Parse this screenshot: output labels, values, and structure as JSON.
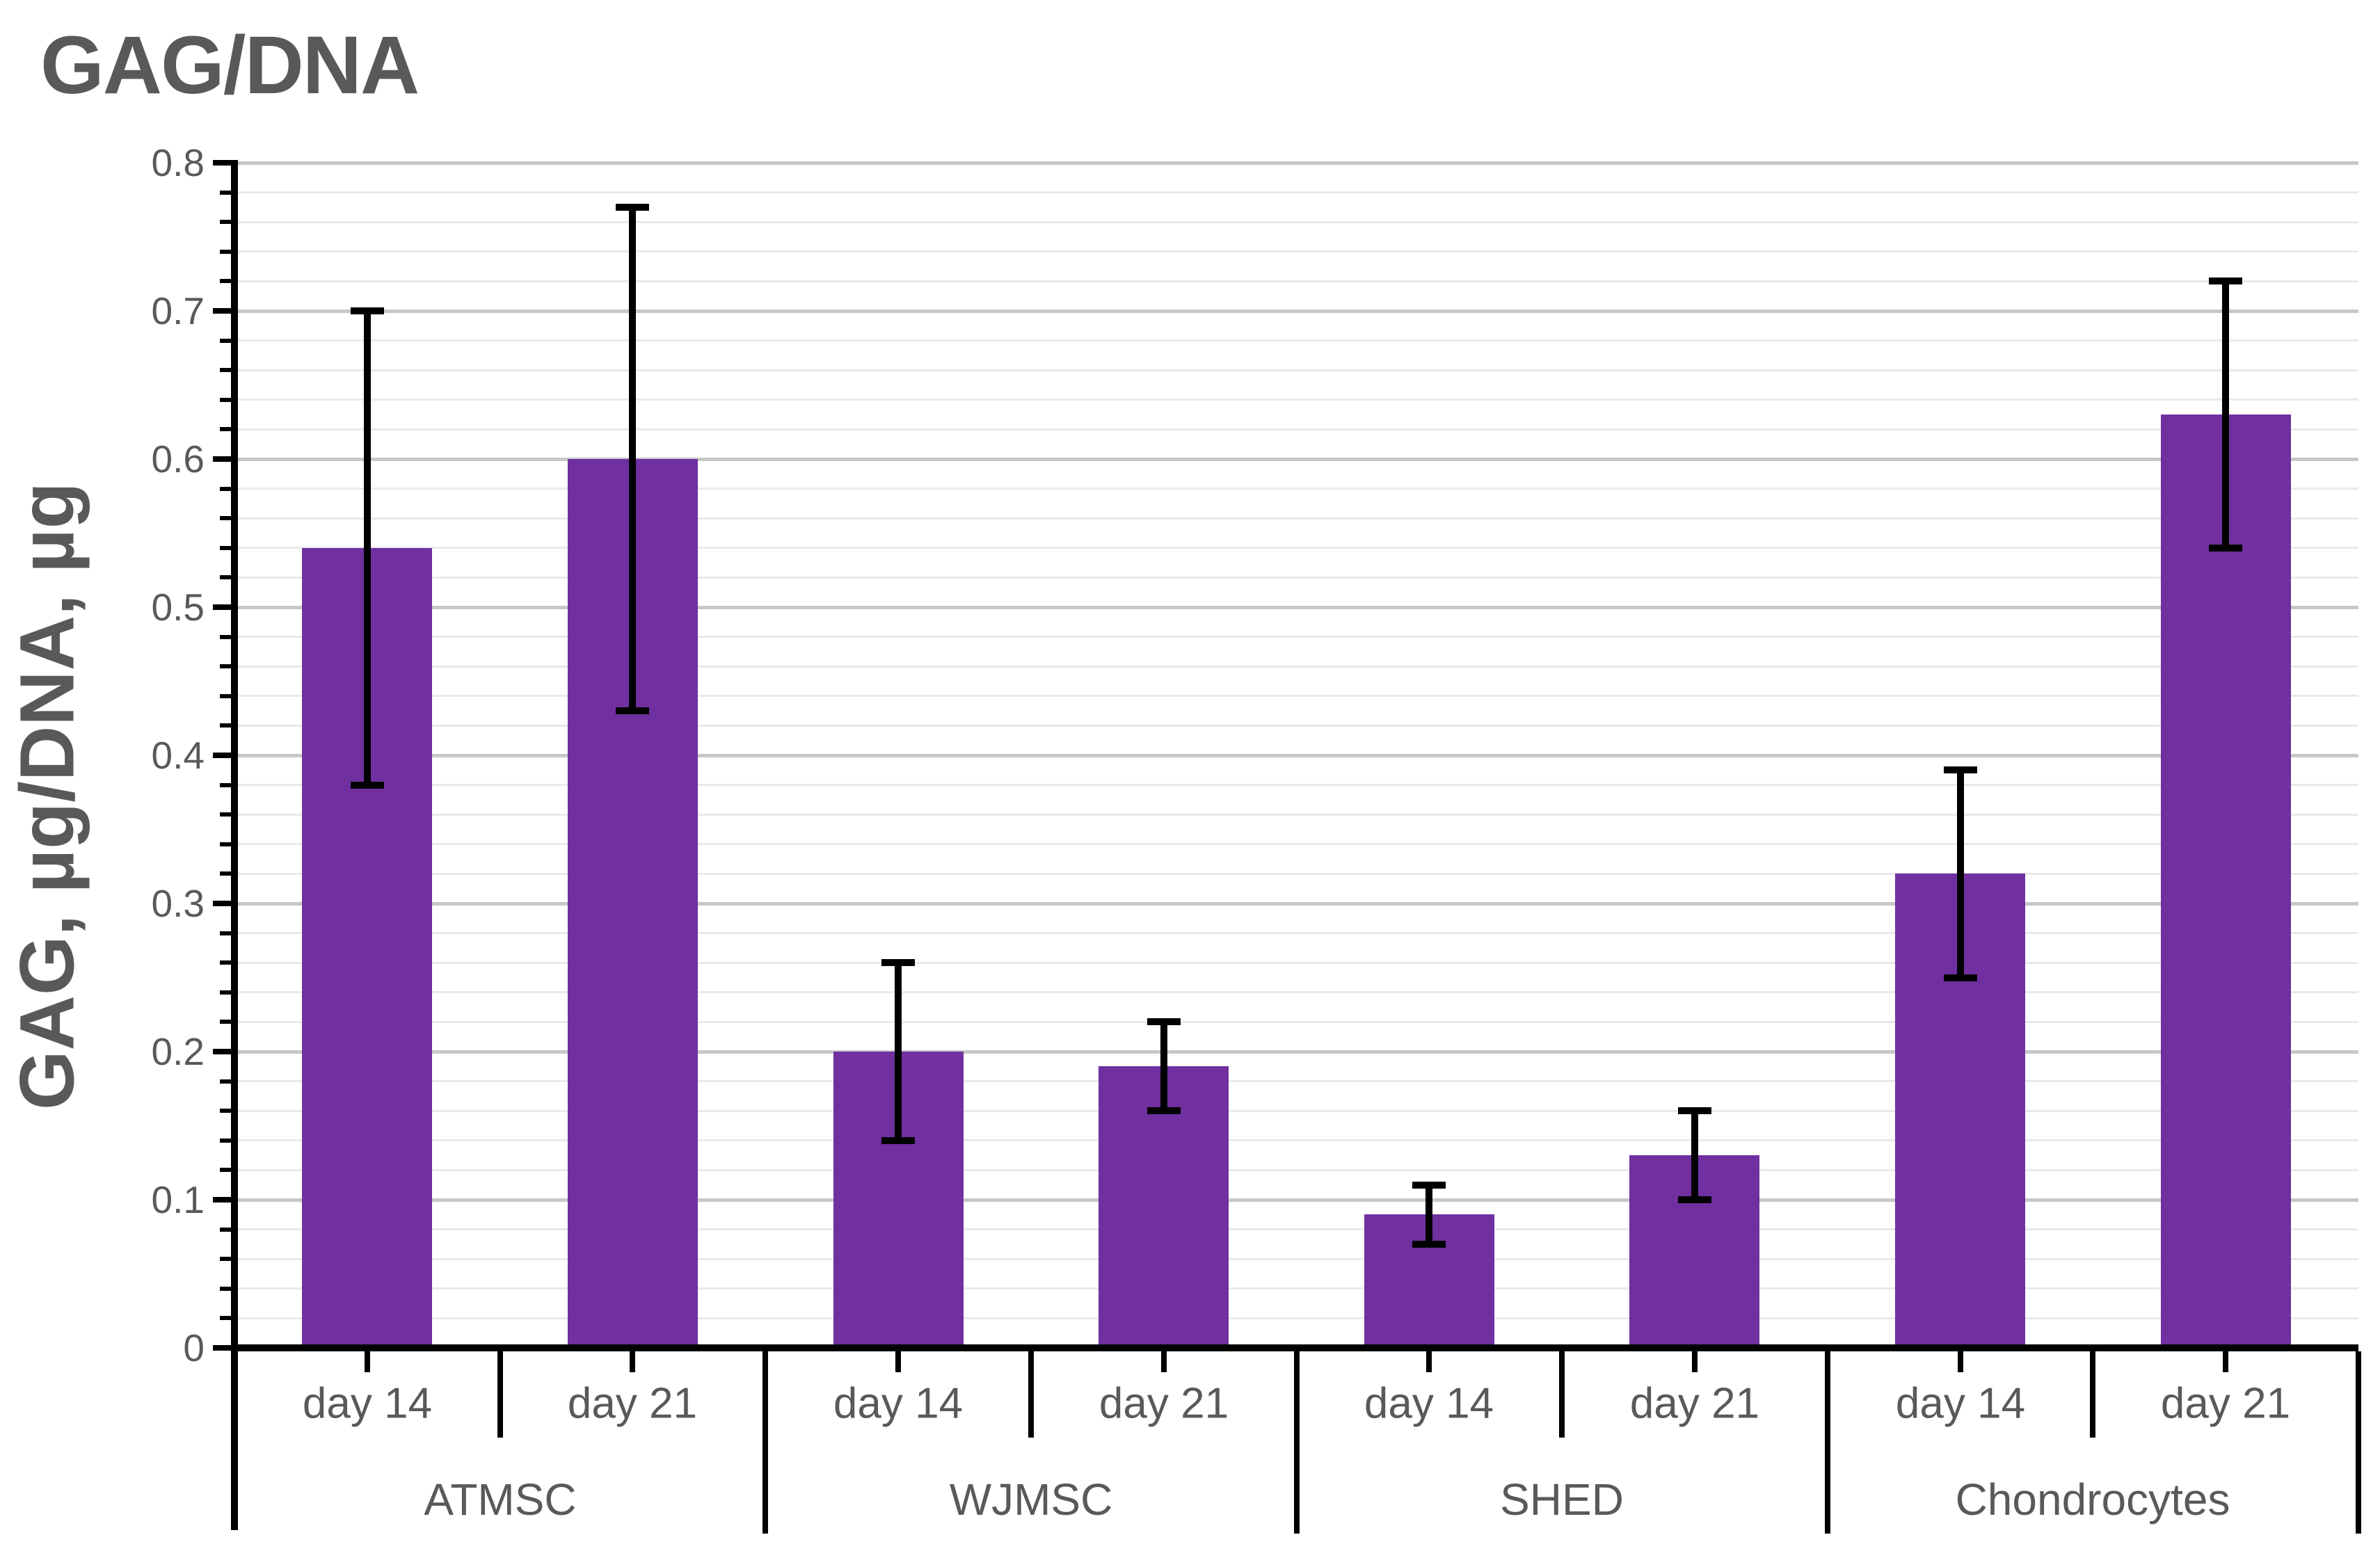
{
  "chart_data": {
    "type": "bar",
    "title": "GAG/DNA",
    "ylabel": "GAG, µg/DNA, µg",
    "xlabel": "",
    "ylim": [
      0,
      0.8
    ],
    "ytick_step": 0.1,
    "yminor_step": 0.02,
    "ytick_labels": [
      "0",
      "0.1",
      "0.2",
      "0.3",
      "0.4",
      "0.5",
      "0.6",
      "0.7",
      "0.8"
    ],
    "grid": "horizontal, major and minor lines",
    "legend": "none",
    "groups": [
      "ATMSC",
      "WJMSC",
      "SHED",
      "Chondrocytes"
    ],
    "subcategories": [
      "day 14",
      "day 21"
    ],
    "series": [
      {
        "group": "ATMSC",
        "points": [
          {
            "label": "day 14",
            "value": 0.54,
            "err_low": 0.38,
            "err_high": 0.7
          },
          {
            "label": "day 21",
            "value": 0.6,
            "err_low": 0.43,
            "err_high": 0.77
          }
        ]
      },
      {
        "group": "WJMSC",
        "points": [
          {
            "label": "day 14",
            "value": 0.2,
            "err_low": 0.14,
            "err_high": 0.26
          },
          {
            "label": "day 21",
            "value": 0.19,
            "err_low": 0.16,
            "err_high": 0.22
          }
        ]
      },
      {
        "group": "SHED",
        "points": [
          {
            "label": "day 14",
            "value": 0.09,
            "err_low": 0.07,
            "err_high": 0.11
          },
          {
            "label": "day 21",
            "value": 0.13,
            "err_low": 0.1,
            "err_high": 0.16
          }
        ]
      },
      {
        "group": "Chondrocytes",
        "points": [
          {
            "label": "day 14",
            "value": 0.32,
            "err_low": 0.25,
            "err_high": 0.39
          },
          {
            "label": "day 21",
            "value": 0.63,
            "err_low": 0.54,
            "err_high": 0.72
          }
        ]
      }
    ],
    "colors": {
      "bar": "#7030A0",
      "label": "#595959",
      "grid_major": "#c7c7c7",
      "grid_minor": "#e9e9e9",
      "axis": "#000000",
      "error_bar": "#000000",
      "background": "#ffffff"
    }
  }
}
